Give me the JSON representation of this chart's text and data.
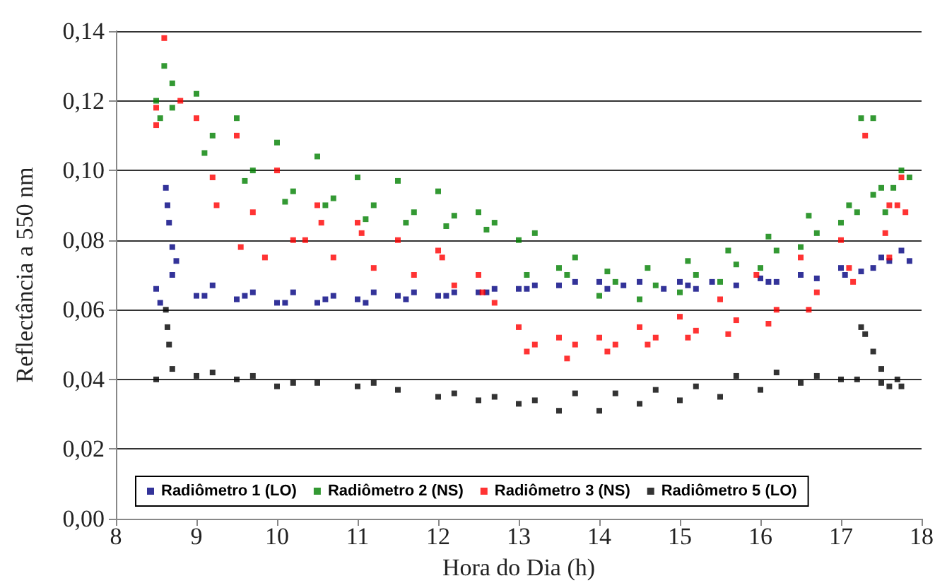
{
  "chart_data": {
    "type": "scatter",
    "xlabel": "Hora do Dia (h)",
    "ylabel": "Reflectância a 550 nm",
    "xlim": [
      8,
      18
    ],
    "xticks": [
      8,
      9,
      10,
      11,
      12,
      13,
      14,
      15,
      16,
      17,
      18
    ],
    "ylim": [
      0,
      0.14
    ],
    "yticks": [
      {
        "value": 0,
        "label": "0,00"
      },
      {
        "value": 0.02,
        "label": "0,02"
      },
      {
        "value": 0.04,
        "label": "0,04"
      },
      {
        "value": 0.06,
        "label": "0,06"
      },
      {
        "value": 0.08,
        "label": "0,08"
      },
      {
        "value": 0.1,
        "label": "0,10"
      },
      {
        "value": 0.12,
        "label": "0,12"
      },
      {
        "value": 0.14,
        "label": "0,14"
      }
    ],
    "grid": "y",
    "legend": "bottom",
    "marker": "square",
    "series": [
      {
        "name": "Radiômetro 1 (LO)",
        "color": "#000080",
        "x": [
          8.5,
          9,
          9.5,
          10,
          10.5,
          11,
          11.5,
          12,
          12.5,
          13,
          13.5,
          14,
          14.5,
          15,
          15.4,
          16,
          16.5,
          17,
          17.5,
          17.75,
          8.7,
          9.2,
          9.7,
          10.2,
          10.7,
          11.2,
          11.7,
          12.2,
          12.7,
          13.2,
          13.7,
          14.3,
          14.8,
          15.2,
          15.7,
          16.2,
          16.7,
          17.25,
          17.6,
          17.85,
          8.55,
          9.1,
          9.6,
          10.1,
          10.6,
          11.1,
          11.6,
          12.1,
          12.6,
          13.1,
          14.1,
          15.1,
          16.1,
          17.05,
          17.4,
          8.62,
          8.64,
          8.66,
          8.7,
          8.75
        ],
        "values": [
          0.066,
          0.064,
          0.063,
          0.062,
          0.062,
          0.063,
          0.064,
          0.064,
          0.065,
          0.066,
          0.067,
          0.068,
          0.068,
          0.068,
          0.068,
          0.069,
          0.07,
          0.072,
          0.075,
          0.077,
          0.07,
          0.067,
          0.065,
          0.065,
          0.064,
          0.065,
          0.065,
          0.065,
          0.066,
          0.067,
          0.068,
          0.067,
          0.066,
          0.066,
          0.067,
          0.068,
          0.069,
          0.071,
          0.074,
          0.074,
          0.062,
          0.064,
          0.064,
          0.062,
          0.063,
          0.062,
          0.063,
          0.064,
          0.065,
          0.066,
          0.066,
          0.067,
          0.068,
          0.07,
          0.072,
          0.095,
          0.09,
          0.085,
          0.078,
          0.074
        ]
      },
      {
        "name": "Radiômetro 2 (NS)",
        "color": "#008000",
        "x": [
          8.5,
          8.6,
          8.7,
          9,
          9.5,
          10,
          10.5,
          11,
          11.5,
          12,
          12.5,
          13,
          13.5,
          14,
          14.5,
          15,
          15.5,
          16,
          16.5,
          17,
          17.5,
          17.75,
          8.7,
          9.2,
          9.7,
          10.2,
          10.7,
          11.2,
          11.7,
          12.2,
          12.7,
          13.2,
          13.7,
          14.2,
          14.7,
          15.2,
          15.7,
          16.2,
          16.7,
          17.2,
          17.4,
          17.55,
          17.85,
          8.55,
          9.1,
          9.6,
          10.1,
          10.6,
          11.1,
          11.6,
          12.1,
          12.6,
          13.1,
          13.6,
          14.1,
          14.6,
          15.1,
          15.6,
          16.1,
          16.6,
          17.1,
          17.25,
          17.4,
          17.65
        ],
        "values": [
          0.12,
          0.13,
          0.125,
          0.122,
          0.115,
          0.108,
          0.104,
          0.098,
          0.097,
          0.094,
          0.088,
          0.08,
          0.072,
          0.064,
          0.063,
          0.065,
          0.068,
          0.072,
          0.078,
          0.085,
          0.095,
          0.1,
          0.118,
          0.11,
          0.1,
          0.094,
          0.092,
          0.09,
          0.088,
          0.087,
          0.085,
          0.082,
          0.075,
          0.068,
          0.067,
          0.07,
          0.073,
          0.077,
          0.082,
          0.088,
          0.093,
          0.088,
          0.098,
          0.115,
          0.105,
          0.097,
          0.091,
          0.09,
          0.086,
          0.085,
          0.084,
          0.083,
          0.07,
          0.07,
          0.071,
          0.072,
          0.074,
          0.077,
          0.081,
          0.087,
          0.09,
          0.115,
          0.115,
          0.095
        ]
      },
      {
        "name": "Radiômetro 3 (NS)",
        "color": "#ff0000",
        "x": [
          8.5,
          8.6,
          8.8,
          9,
          9.5,
          10,
          10.5,
          11,
          11.5,
          12,
          12.5,
          13,
          13.5,
          14,
          14.5,
          15,
          15.5,
          15.95,
          16.5,
          17,
          17.3,
          17.6,
          17.75,
          8.5,
          9.2,
          9.7,
          10.2,
          10.7,
          11.2,
          11.7,
          12.2,
          12.7,
          13.2,
          13.7,
          14.2,
          14.7,
          15.2,
          15.7,
          16.2,
          16.7,
          17.1,
          17.55,
          17.8,
          9.25,
          9.55,
          9.85,
          10.35,
          10.55,
          11.05,
          12.05,
          12.55,
          13.1,
          13.6,
          14.1,
          14.6,
          15.1,
          15.6,
          16.1,
          16.6,
          17.15,
          17.6,
          17.7
        ],
        "values": [
          0.118,
          0.138,
          0.12,
          0.115,
          0.11,
          0.1,
          0.09,
          0.085,
          0.08,
          0.077,
          0.07,
          0.055,
          0.052,
          0.052,
          0.055,
          0.058,
          0.063,
          0.07,
          0.075,
          0.08,
          0.11,
          0.09,
          0.098,
          0.113,
          0.098,
          0.088,
          0.08,
          0.075,
          0.072,
          0.07,
          0.067,
          0.062,
          0.05,
          0.05,
          0.05,
          0.052,
          0.054,
          0.057,
          0.06,
          0.065,
          0.072,
          0.082,
          0.088,
          0.09,
          0.078,
          0.075,
          0.08,
          0.085,
          0.082,
          0.075,
          0.065,
          0.048,
          0.046,
          0.048,
          0.05,
          0.052,
          0.053,
          0.056,
          0.06,
          0.068,
          0.075,
          0.09
        ]
      },
      {
        "name": "Radiômetro 5 (LO)",
        "color": "#000000",
        "x": [
          8.5,
          9,
          9.5,
          10,
          10.5,
          11,
          11.5,
          12,
          12.5,
          13,
          13.5,
          14,
          14.5,
          15,
          15.5,
          16,
          16.5,
          17,
          17.5,
          17.75,
          8.7,
          9.2,
          9.7,
          10.2,
          11.2,
          12.2,
          12.7,
          13.2,
          13.7,
          14.2,
          14.7,
          15.2,
          15.7,
          16.2,
          16.7,
          17.2,
          17.6,
          17.7,
          8.62,
          8.64,
          8.66,
          17.25,
          17.3,
          17.4,
          17.5
        ],
        "values": [
          0.04,
          0.041,
          0.04,
          0.038,
          0.039,
          0.038,
          0.037,
          0.035,
          0.034,
          0.033,
          0.031,
          0.031,
          0.033,
          0.034,
          0.035,
          0.037,
          0.039,
          0.04,
          0.039,
          0.038,
          0.043,
          0.042,
          0.041,
          0.039,
          0.039,
          0.036,
          0.035,
          0.034,
          0.036,
          0.036,
          0.037,
          0.038,
          0.041,
          0.042,
          0.041,
          0.04,
          0.038,
          0.04,
          0.06,
          0.055,
          0.05,
          0.055,
          0.053,
          0.048,
          0.043
        ]
      }
    ]
  }
}
